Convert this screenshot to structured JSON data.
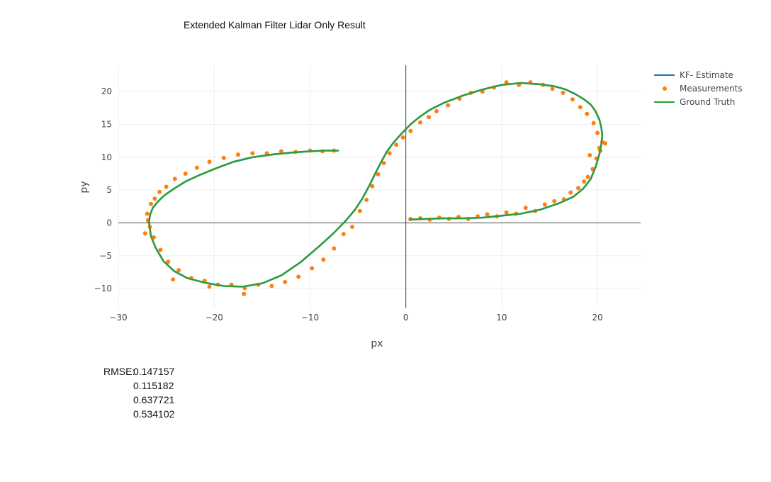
{
  "title": "Extended Kalman Filter Lidar Only Result",
  "rmse": {
    "label": "RMSE:",
    "values": [
      "0.147157",
      "0.115182",
      "0.637721",
      "0.534102"
    ]
  },
  "colors": {
    "estimate": "#1f77b4",
    "measurements": "#ff7f0e",
    "ground_truth": "#2ca02c"
  },
  "chart_data": {
    "type": "scatter",
    "xlabel": "px",
    "ylabel": "py",
    "xlim": [
      -30,
      24.5
    ],
    "ylim": [
      -13,
      24
    ],
    "xticks": [
      -30,
      -20,
      -10,
      0,
      10,
      20
    ],
    "yticks": [
      -10,
      -5,
      0,
      5,
      10,
      15,
      20
    ],
    "xtick_labels": [
      "−30",
      "−20",
      "−10",
      "0",
      "10",
      "20"
    ],
    "ytick_labels": [
      "−10",
      "−5",
      "0",
      "5",
      "10",
      "15",
      "20"
    ],
    "grid": true,
    "legend": "top-right",
    "series": [
      {
        "name": "KF- Estimate",
        "mode": "lines",
        "x": [
          0.3,
          2.0,
          4.0,
          6.0,
          8.0,
          10.0,
          12.0,
          14.0,
          16.0,
          17.5,
          18.5,
          19.3,
          19.8,
          20.2,
          20.4,
          20.5,
          20.4,
          20.2,
          19.8,
          19.3,
          18.6,
          17.7,
          16.7,
          15.5,
          14.0,
          12.0,
          10.0,
          8.0,
          6.0,
          4.0,
          2.5,
          1.5,
          0.5,
          -0.5,
          -1.3,
          -2.0,
          -2.6,
          -3.2,
          -3.8,
          -4.5,
          -5.3,
          -6.3,
          -7.5,
          -9.0,
          -11.0,
          -13.0,
          -15.0,
          -17.0,
          -19.0,
          -21.0,
          -22.8,
          -24.2,
          -25.3,
          -26.1,
          -26.6,
          -26.8,
          -26.7,
          -26.4,
          -25.9,
          -25.2,
          -24.2,
          -23.0,
          -21.5,
          -20.0,
          -18.0,
          -16.0,
          -14.0,
          -12.0,
          -10.0,
          -8.5,
          -7.0
        ],
        "y": [
          0.5,
          0.6,
          0.7,
          0.7,
          0.8,
          1.1,
          1.4,
          2.0,
          3.0,
          4.0,
          5.2,
          6.7,
          8.5,
          10.5,
          12.0,
          13.3,
          14.5,
          15.7,
          17.0,
          18.0,
          18.8,
          19.6,
          20.3,
          20.8,
          21.1,
          21.3,
          21.0,
          20.3,
          19.4,
          18.3,
          17.2,
          16.2,
          15.0,
          13.5,
          12.2,
          10.8,
          9.2,
          7.5,
          5.7,
          3.8,
          2.0,
          0.3,
          -1.5,
          -3.5,
          -6.0,
          -8.0,
          -9.2,
          -9.7,
          -9.6,
          -9.1,
          -8.4,
          -7.3,
          -5.8,
          -3.8,
          -2.0,
          0.0,
          1.2,
          2.3,
          3.2,
          4.2,
          5.2,
          6.3,
          7.3,
          8.2,
          9.3,
          10.0,
          10.4,
          10.7,
          10.9,
          11.0,
          11.0
        ]
      },
      {
        "name": "Measurements",
        "mode": "markers",
        "x": [
          0.5,
          1.5,
          2.5,
          3.5,
          4.5,
          5.5,
          6.5,
          7.5,
          8.5,
          9.5,
          10.5,
          11.5,
          12.5,
          13.5,
          14.5,
          15.5,
          16.5,
          17.2,
          18.0,
          18.6,
          19.0,
          19.5,
          19.9,
          20.2,
          20.5,
          20.8,
          20.3,
          19.2,
          20.0,
          19.6,
          18.9,
          18.2,
          17.4,
          16.4,
          15.3,
          14.3,
          13.0,
          11.8,
          10.5,
          9.2,
          8.0,
          6.8,
          5.6,
          4.4,
          3.2,
          2.4,
          1.5,
          0.5,
          -0.3,
          -1.0,
          -1.7,
          -2.3,
          -2.9,
          -3.5,
          -4.1,
          -4.8,
          -5.6,
          -6.5,
          -7.5,
          -8.6,
          -9.8,
          -11.2,
          -12.6,
          -14.0,
          -15.4,
          -16.8,
          -18.2,
          -19.6,
          -21.0,
          -22.4,
          -23.7,
          -24.8,
          -25.6,
          -26.3,
          -26.7,
          -26.9,
          -27.0,
          -26.6,
          -26.2,
          -25.7,
          -25.0,
          -24.1,
          -23.0,
          -21.8,
          -20.5,
          -19.0,
          -17.5,
          -16.0,
          -14.5,
          -13.0,
          -11.5,
          -10.0,
          -8.7,
          -7.5,
          -16.9,
          -20.5,
          -24.3,
          -27.2
        ],
        "y": [
          0.6,
          0.7,
          0.5,
          0.8,
          0.6,
          0.9,
          0.6,
          1.0,
          1.3,
          1.0,
          1.6,
          1.4,
          2.3,
          1.8,
          2.8,
          3.3,
          3.6,
          4.6,
          5.3,
          6.3,
          7.0,
          8.2,
          9.8,
          11.4,
          12.3,
          12.1,
          11.0,
          10.3,
          13.7,
          15.2,
          16.6,
          17.6,
          18.8,
          19.8,
          20.4,
          21.0,
          21.4,
          21.0,
          21.4,
          20.6,
          20.0,
          19.8,
          18.9,
          17.9,
          17.0,
          16.1,
          15.3,
          14.0,
          13.0,
          11.9,
          10.6,
          9.1,
          7.4,
          5.6,
          3.5,
          1.8,
          -0.6,
          -1.7,
          -3.9,
          -5.6,
          -6.9,
          -8.2,
          -9.0,
          -9.6,
          -9.4,
          -9.9,
          -9.4,
          -9.4,
          -8.8,
          -8.4,
          -7.2,
          -5.9,
          -4.1,
          -2.2,
          -0.6,
          0.4,
          1.4,
          2.9,
          3.7,
          4.7,
          5.5,
          6.7,
          7.5,
          8.4,
          9.3,
          9.9,
          10.4,
          10.6,
          10.6,
          10.9,
          10.8,
          11.0,
          10.9,
          11.0,
          -10.8,
          -9.7,
          -8.6,
          -1.6
        ]
      },
      {
        "name": "Ground Truth",
        "mode": "lines",
        "x": [
          0.3,
          2.0,
          4.0,
          6.0,
          8.0,
          10.0,
          12.0,
          14.0,
          16.0,
          17.5,
          18.5,
          19.3,
          19.8,
          20.2,
          20.4,
          20.5,
          20.4,
          20.2,
          19.8,
          19.3,
          18.6,
          17.7,
          16.7,
          15.5,
          14.0,
          12.0,
          10.0,
          8.0,
          6.0,
          4.0,
          2.5,
          1.5,
          0.5,
          -0.5,
          -1.3,
          -2.0,
          -2.6,
          -3.2,
          -3.8,
          -4.5,
          -5.3,
          -6.3,
          -7.5,
          -9.0,
          -11.0,
          -13.0,
          -15.0,
          -17.0,
          -19.0,
          -21.0,
          -22.8,
          -24.2,
          -25.3,
          -26.1,
          -26.6,
          -26.8,
          -26.7,
          -26.4,
          -25.9,
          -25.2,
          -24.2,
          -23.0,
          -21.5,
          -20.0,
          -18.0,
          -16.0,
          -14.0,
          -12.0,
          -10.0,
          -8.5,
          -7.0
        ],
        "y": [
          0.5,
          0.6,
          0.7,
          0.7,
          0.8,
          1.1,
          1.4,
          2.0,
          3.0,
          4.0,
          5.2,
          6.7,
          8.5,
          10.5,
          12.0,
          13.3,
          14.5,
          15.7,
          17.0,
          18.0,
          18.8,
          19.6,
          20.3,
          20.8,
          21.1,
          21.3,
          21.0,
          20.3,
          19.4,
          18.3,
          17.2,
          16.2,
          15.0,
          13.5,
          12.2,
          10.8,
          9.2,
          7.5,
          5.7,
          3.8,
          2.0,
          0.3,
          -1.5,
          -3.5,
          -6.0,
          -8.0,
          -9.2,
          -9.7,
          -9.6,
          -9.1,
          -8.4,
          -7.3,
          -5.8,
          -3.8,
          -2.0,
          0.0,
          1.2,
          2.3,
          3.2,
          4.2,
          5.2,
          6.3,
          7.3,
          8.2,
          9.3,
          10.0,
          10.4,
          10.7,
          10.9,
          11.0,
          11.0
        ]
      }
    ]
  }
}
